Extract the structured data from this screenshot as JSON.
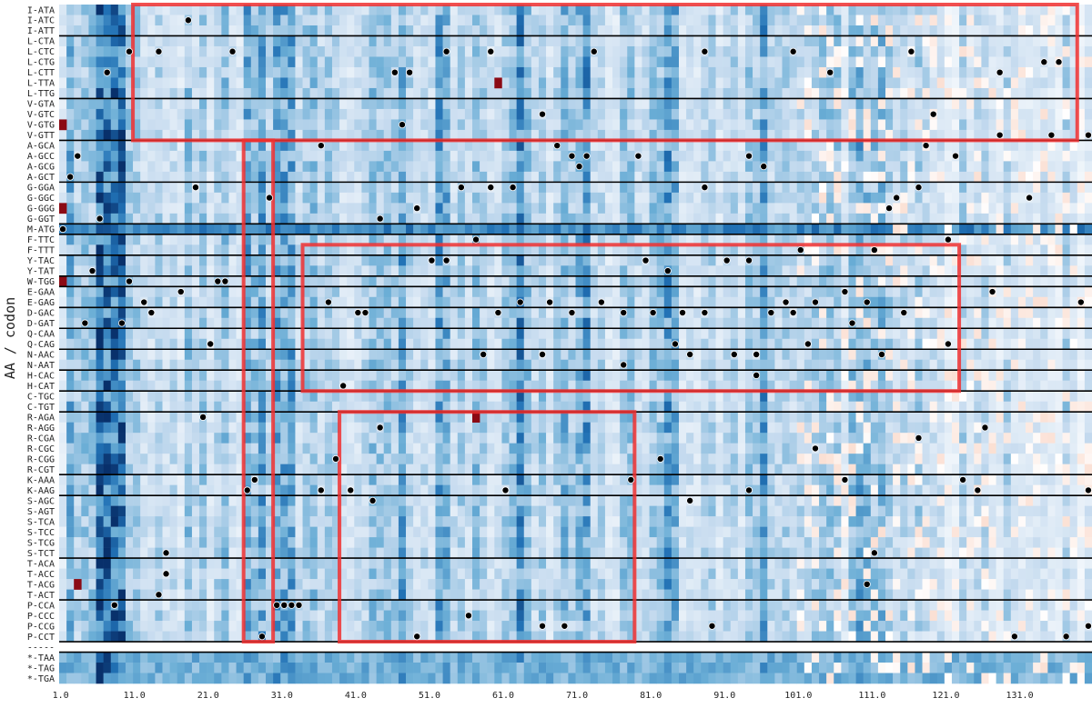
{
  "chart_data": {
    "type": "heatmap",
    "ylabel": "AA / codon",
    "xlabel": "",
    "x_ticks": [
      "1.0",
      "11.0",
      "21.0",
      "31.0",
      "41.0",
      "51.0",
      "61.0",
      "71.0",
      "81.0",
      "91.0",
      "101.0",
      "111.0",
      "121.0",
      "131.0"
    ],
    "xlim": [
      1,
      140
    ],
    "rows": [
      "I-ATA",
      "I-ATC",
      "I-ATT",
      "L-CTA",
      "L-CTC",
      "L-CTG",
      "L-CTT",
      "L-TTA",
      "L-TTG",
      "V-GTA",
      "V-GTC",
      "V-GTG",
      "V-GTT",
      "A-GCA",
      "A-GCC",
      "A-GCG",
      "A-GCT",
      "G-GGA",
      "G-GGC",
      "G-GGG",
      "G-GGT",
      "M-ATG",
      "F-TTC",
      "F-TTT",
      "Y-TAC",
      "Y-TAT",
      "W-TGG",
      "E-GAA",
      "E-GAG",
      "D-GAC",
      "D-GAT",
      "Q-CAA",
      "Q-CAG",
      "N-AAC",
      "N-AAT",
      "H-CAC",
      "H-CAT",
      "C-TGC",
      "C-TGT",
      "R-AGA",
      "R-AGG",
      "R-CGA",
      "R-CGC",
      "R-CGG",
      "R-CGT",
      "K-AAA",
      "K-AAG",
      "S-AGC",
      "S-AGT",
      "S-TCA",
      "S-TCC",
      "S-TCG",
      "S-TCT",
      "T-ACA",
      "T-ACC",
      "T-ACG",
      "T-ACT",
      "P-CCA",
      "P-CCC",
      "P-CCG",
      "P-CCT",
      "-----",
      "*-TAA",
      "*-TAG",
      "*-TGA"
    ],
    "group_separators_after": [
      "I-ATT",
      "L-TTG",
      "V-GTT",
      "A-GCT",
      "G-GGT",
      "M-ATG",
      "F-TTT",
      "Y-TAT",
      "W-TGG",
      "E-GAG",
      "D-GAT",
      "Q-CAG",
      "N-AAT",
      "H-CAT",
      "C-TGT",
      "R-CGT",
      "K-AAG",
      "S-TCT",
      "T-ACT",
      "P-CCT",
      "-----"
    ],
    "colormap": {
      "negative": "#08306b",
      "neutral": "#ffffff",
      "positive": "#67000d"
    },
    "markers": [
      [
        18,
        "I-ATC"
      ],
      [
        10,
        "L-CTC"
      ],
      [
        14,
        "L-CTC"
      ],
      [
        24,
        "L-CTC"
      ],
      [
        53,
        "L-CTC"
      ],
      [
        59,
        "L-CTC"
      ],
      [
        73,
        "L-CTC"
      ],
      [
        88,
        "L-CTC"
      ],
      [
        100,
        "L-CTC"
      ],
      [
        116,
        "L-CTC"
      ],
      [
        7,
        "L-CTT"
      ],
      [
        46,
        "L-CTT"
      ],
      [
        48,
        "L-CTT"
      ],
      [
        105,
        "L-CTT"
      ],
      [
        128,
        "L-CTT"
      ],
      [
        134,
        "L-CTG"
      ],
      [
        136,
        "L-CTG"
      ],
      [
        66,
        "V-GTC"
      ],
      [
        119,
        "V-GTC"
      ],
      [
        47,
        "V-GTG"
      ],
      [
        128,
        "V-GTT"
      ],
      [
        135,
        "V-GTT"
      ],
      [
        140,
        "V-GTT"
      ],
      [
        36,
        "A-GCA"
      ],
      [
        68,
        "A-GCA"
      ],
      [
        118,
        "A-GCA"
      ],
      [
        3,
        "A-GCC"
      ],
      [
        70,
        "A-GCC"
      ],
      [
        72,
        "A-GCC"
      ],
      [
        79,
        "A-GCC"
      ],
      [
        94,
        "A-GCC"
      ],
      [
        122,
        "A-GCC"
      ],
      [
        71,
        "A-GCG"
      ],
      [
        96,
        "A-GCG"
      ],
      [
        2,
        "A-GCT"
      ],
      [
        19,
        "G-GGA"
      ],
      [
        55,
        "G-GGA"
      ],
      [
        59,
        "G-GGA"
      ],
      [
        62,
        "G-GGA"
      ],
      [
        88,
        "G-GGA"
      ],
      [
        117,
        "G-GGA"
      ],
      [
        29,
        "G-GGC"
      ],
      [
        114,
        "G-GGC"
      ],
      [
        132,
        "G-GGC"
      ],
      [
        49,
        "G-GGG"
      ],
      [
        113,
        "G-GGG"
      ],
      [
        6,
        "G-GGT"
      ],
      [
        44,
        "G-GGT"
      ],
      [
        1,
        "M-ATG"
      ],
      [
        57,
        "F-TTC"
      ],
      [
        121,
        "F-TTC"
      ],
      [
        101,
        "F-TTT"
      ],
      [
        111,
        "F-TTT"
      ],
      [
        51,
        "Y-TAC"
      ],
      [
        53,
        "Y-TAC"
      ],
      [
        80,
        "Y-TAC"
      ],
      [
        91,
        "Y-TAC"
      ],
      [
        94,
        "Y-TAC"
      ],
      [
        5,
        "Y-TAT"
      ],
      [
        83,
        "Y-TAT"
      ],
      [
        10,
        "W-TGG"
      ],
      [
        22,
        "W-TGG"
      ],
      [
        23,
        "W-TGG"
      ],
      [
        17,
        "E-GAA"
      ],
      [
        107,
        "E-GAA"
      ],
      [
        127,
        "E-GAA"
      ],
      [
        12,
        "E-GAG"
      ],
      [
        37,
        "E-GAG"
      ],
      [
        63,
        "E-GAG"
      ],
      [
        67,
        "E-GAG"
      ],
      [
        74,
        "E-GAG"
      ],
      [
        99,
        "E-GAG"
      ],
      [
        103,
        "E-GAG"
      ],
      [
        110,
        "E-GAG"
      ],
      [
        139,
        "E-GAG"
      ],
      [
        13,
        "D-GAC"
      ],
      [
        41,
        "D-GAC"
      ],
      [
        42,
        "D-GAC"
      ],
      [
        60,
        "D-GAC"
      ],
      [
        70,
        "D-GAC"
      ],
      [
        77,
        "D-GAC"
      ],
      [
        81,
        "D-GAC"
      ],
      [
        85,
        "D-GAC"
      ],
      [
        88,
        "D-GAC"
      ],
      [
        97,
        "D-GAC"
      ],
      [
        100,
        "D-GAC"
      ],
      [
        115,
        "D-GAC"
      ],
      [
        4,
        "D-GAT"
      ],
      [
        9,
        "D-GAT"
      ],
      [
        108,
        "D-GAT"
      ],
      [
        21,
        "Q-CAG"
      ],
      [
        84,
        "Q-CAG"
      ],
      [
        102,
        "Q-CAG"
      ],
      [
        121,
        "Q-CAG"
      ],
      [
        58,
        "N-AAC"
      ],
      [
        66,
        "N-AAC"
      ],
      [
        86,
        "N-AAC"
      ],
      [
        92,
        "N-AAC"
      ],
      [
        95,
        "N-AAC"
      ],
      [
        112,
        "N-AAC"
      ],
      [
        77,
        "N-AAT"
      ],
      [
        95,
        "H-CAC"
      ],
      [
        39,
        "H-CAT"
      ],
      [
        20,
        "R-AGA"
      ],
      [
        44,
        "R-AGG"
      ],
      [
        126,
        "R-AGG"
      ],
      [
        117,
        "R-CGA"
      ],
      [
        103,
        "R-CGC"
      ],
      [
        82,
        "R-CGG"
      ],
      [
        38,
        "R-CGG"
      ],
      [
        27,
        "K-AAA"
      ],
      [
        78,
        "K-AAA"
      ],
      [
        107,
        "K-AAA"
      ],
      [
        123,
        "K-AAA"
      ],
      [
        26,
        "K-AAG"
      ],
      [
        36,
        "K-AAG"
      ],
      [
        40,
        "K-AAG"
      ],
      [
        61,
        "K-AAG"
      ],
      [
        94,
        "K-AAG"
      ],
      [
        125,
        "K-AAG"
      ],
      [
        140,
        "K-AAG"
      ],
      [
        43,
        "S-AGC"
      ],
      [
        86,
        "S-AGC"
      ],
      [
        15,
        "S-TCT"
      ],
      [
        111,
        "S-TCT"
      ],
      [
        15,
        "T-ACC"
      ],
      [
        110,
        "T-ACG"
      ],
      [
        14,
        "T-ACT"
      ],
      [
        8,
        "P-CCA"
      ],
      [
        30,
        "P-CCA"
      ],
      [
        31,
        "P-CCA"
      ],
      [
        32,
        "P-CCA"
      ],
      [
        33,
        "P-CCA"
      ],
      [
        56,
        "P-CCC"
      ],
      [
        66,
        "P-CCG"
      ],
      [
        69,
        "P-CCG"
      ],
      [
        89,
        "P-CCG"
      ],
      [
        140,
        "P-CCG"
      ],
      [
        28,
        "P-CCT"
      ],
      [
        49,
        "P-CCT"
      ],
      [
        130,
        "P-CCT"
      ],
      [
        137,
        "P-CCT"
      ]
    ],
    "dark_red_cells": [
      [
        1,
        "V-GTG"
      ],
      [
        1,
        "G-GGG"
      ],
      [
        1,
        "W-TGG"
      ],
      [
        60,
        "L-TTA"
      ],
      [
        57,
        "R-AGA"
      ],
      [
        3,
        "T-ACG"
      ]
    ],
    "highlight_boxes": [
      {
        "x_range": [
          11,
          138
        ],
        "rows": [
          "I-ATA",
          "V-GTT"
        ]
      },
      {
        "x_range": [
          26,
          29
        ],
        "rows": [
          "A-GCA",
          "P-CCT"
        ]
      },
      {
        "x_range": [
          34,
          122
        ],
        "rows": [
          "F-TTT",
          "H-CAT"
        ]
      },
      {
        "x_range": [
          39,
          78
        ],
        "rows": [
          "R-AGA",
          "P-CCT"
        ]
      }
    ]
  },
  "colors": {
    "highlight": "#f03030",
    "separator": "#000000",
    "marker": "#000000"
  }
}
